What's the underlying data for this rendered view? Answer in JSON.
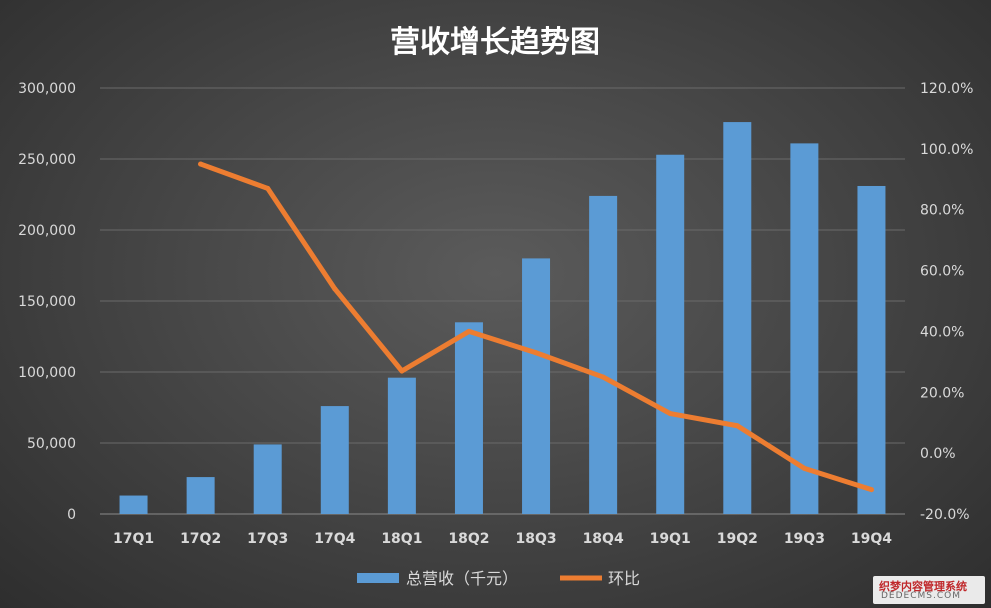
{
  "chart_data": {
    "type": "bar+line",
    "title": "营收增长趋势图",
    "categories": [
      "17Q1",
      "17Q2",
      "17Q3",
      "17Q4",
      "18Q1",
      "18Q2",
      "18Q3",
      "18Q4",
      "19Q1",
      "19Q2",
      "19Q3",
      "19Q4"
    ],
    "series": [
      {
        "name": "总营收（千元）",
        "type": "bar",
        "axis": "left",
        "color": "#5b9bd5",
        "values": [
          13000,
          26000,
          49000,
          76000,
          96000,
          135000,
          180000,
          224000,
          253000,
          276000,
          261000,
          231000
        ]
      },
      {
        "name": "环比",
        "type": "line",
        "axis": "right",
        "color": "#ed7d31",
        "values": [
          null,
          95.0,
          87.0,
          54.0,
          27.0,
          40.0,
          33.0,
          25.0,
          13.0,
          9.0,
          -5.0,
          -12.0
        ]
      }
    ],
    "left_axis": {
      "ylim": [
        0,
        300000
      ],
      "ticks": [
        0,
        50000,
        100000,
        150000,
        200000,
        250000,
        300000
      ],
      "tick_labels": [
        "0",
        "50,000",
        "100,000",
        "150,000",
        "200,000",
        "250,000",
        "300,000"
      ]
    },
    "right_axis": {
      "ylim": [
        -20,
        120
      ],
      "ticks": [
        -20,
        0,
        20,
        40,
        60,
        80,
        100,
        120
      ],
      "tick_labels": [
        "-20.0%",
        "0.0%",
        "20.0%",
        "40.0%",
        "60.0%",
        "80.0%",
        "100.0%",
        "120.0%"
      ]
    },
    "grid": true,
    "legend_position": "bottom"
  },
  "watermark": {
    "line1": "织梦内容管理系统",
    "line2": "DEDECMS.COM"
  },
  "colors": {
    "gridline": "#6a6a6a",
    "text": "#d9d9d9",
    "title": "#ffffff"
  }
}
